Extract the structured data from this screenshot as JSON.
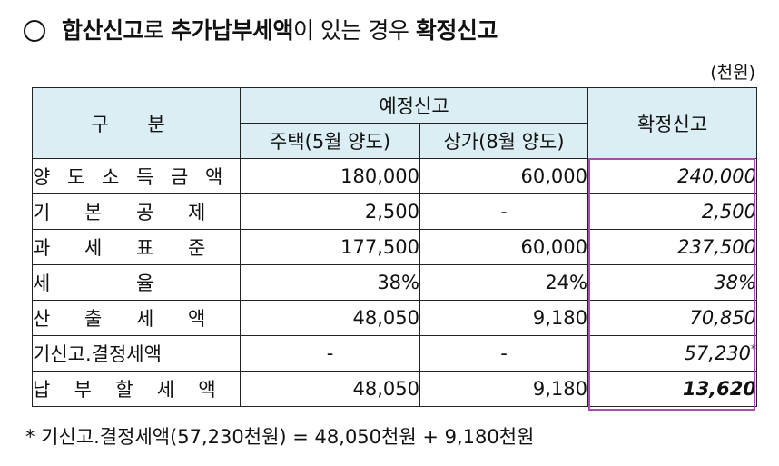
{
  "title": {
    "part1": "합산신고",
    "part2": "로 ",
    "part3": "추가납부세액",
    "part4": "이 있는 경우 ",
    "part5": "확정신고"
  },
  "unit": "(천원)",
  "table": {
    "header": {
      "category": "구 분",
      "prelim": "예정신고",
      "house": "주택(5월 양도)",
      "store": "상가(8월 양도)",
      "final": "확정신고"
    },
    "rows": [
      {
        "label": [
          "양",
          "도",
          "소",
          "득",
          "금",
          "액"
        ],
        "house": "180,000",
        "store": "60,000",
        "final": "240,000"
      },
      {
        "label": [
          "기",
          "본",
          "공",
          "제"
        ],
        "house": "2,500",
        "store": "-",
        "final": "2,500"
      },
      {
        "label": [
          "과",
          "세",
          "표",
          "준"
        ],
        "house": "177,500",
        "store": "60,000",
        "final": "237,500"
      },
      {
        "label": [
          "세",
          "율"
        ],
        "house": "38%",
        "store": "24%",
        "final": "38%"
      },
      {
        "label": [
          "산",
          "출",
          "세",
          "액"
        ],
        "house": "48,050",
        "store": "9,180",
        "final": "70,850"
      },
      {
        "label": [
          "기신고.결정세액"
        ],
        "house": "-",
        "store": "-",
        "final": "57,230",
        "final_mark": "*"
      },
      {
        "label": [
          "납",
          "부",
          "할",
          "세",
          "액"
        ],
        "house": "48,050",
        "store": "9,180",
        "final": "13,620"
      }
    ]
  },
  "footnote": "* 기신고.결정세액(57,230천원) = 48,050천원 + 9,180천원"
}
